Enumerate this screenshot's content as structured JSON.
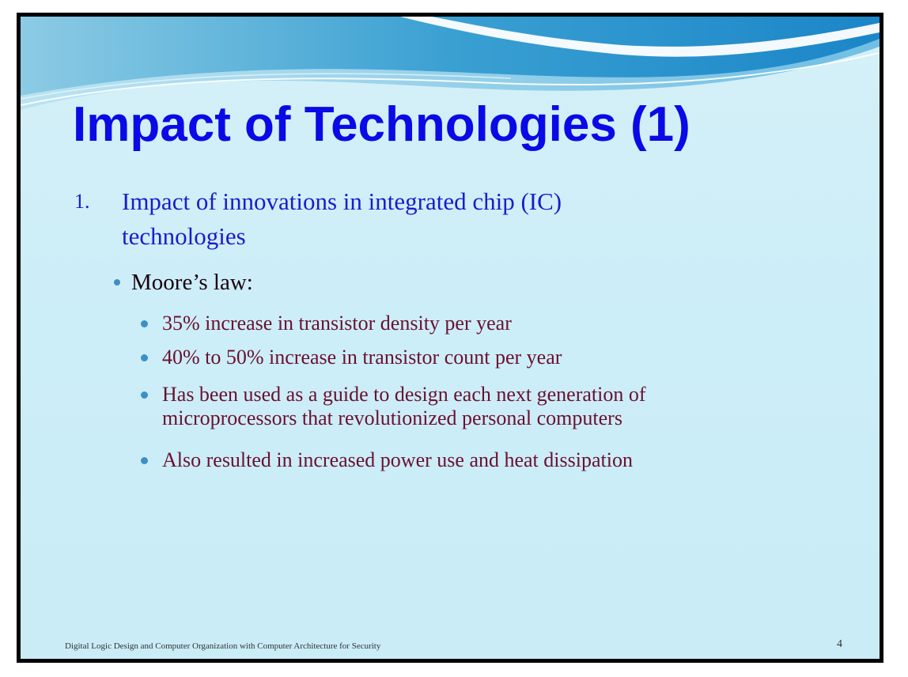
{
  "slide": {
    "title": "Impact of Technologies (1)",
    "item1": {
      "number": "1.",
      "line1": "Impact of innovations in integrated chip (IC)",
      "line2": "technologies"
    },
    "sub": {
      "label": "Moore’s law:"
    },
    "bullets": [
      {
        "lines": [
          "35% increase in transistor density per year"
        ]
      },
      {
        "lines": [
          "40% to 50% increase in transistor count per year"
        ]
      },
      {
        "lines": [
          "Has been used as a guide to design each next generation of",
          "microprocessors that revolutionized personal computers"
        ]
      },
      {
        "lines": [
          "Also resulted in increased power use and heat dissipation"
        ]
      }
    ],
    "footer": "Digital Logic Design and Computer Organization with Computer Architecture for Security",
    "page_number": "4"
  },
  "colors": {
    "title": "#0a0ae6",
    "level1": "#1b1bcc",
    "level2": "#1a0010",
    "level3": "#6b1030",
    "bullet": "#3d8fc6",
    "background": "#cdeef8",
    "border": "#000000"
  }
}
